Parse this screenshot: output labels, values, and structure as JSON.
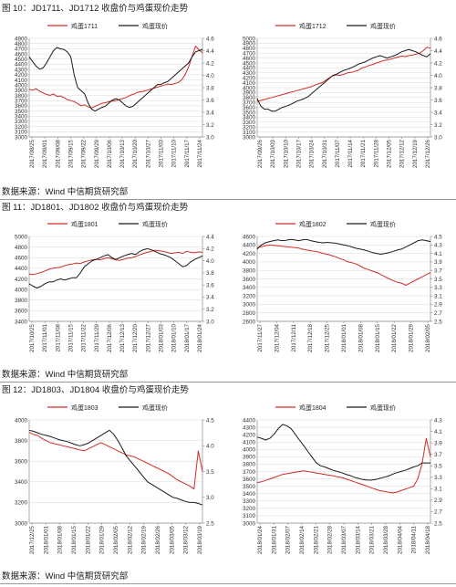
{
  "figures": [
    {
      "title": "图 10：JD1711、JD1712 收盘价与鸡蛋现价走势",
      "source": "数据来源：Wind  中信期货研究部"
    },
    {
      "title": "图 11：JD1801、JD1802 收盘价与鸡蛋现价走势",
      "source": "数据来源：Wind  中信期货研究部"
    },
    {
      "title": "图 12：JD1803、JD1804 收盘价与鸡蛋现价走势",
      "source": "数据来源：Wind  中信期货研究部"
    }
  ],
  "colors": {
    "futures": "#d42a2a",
    "spot": "#1a1a1a",
    "grid": "#d9d9d9",
    "axis": "#888888"
  },
  "chart_data": [
    {
      "type": "line",
      "legend": [
        "鸡蛋1711",
        "鸡蛋现价"
      ],
      "legend_position": "top",
      "ylim": [
        3000,
        4900
      ],
      "yticks": [
        3000,
        3100,
        3200,
        3300,
        3400,
        3500,
        3600,
        3700,
        3800,
        3900,
        4000,
        4100,
        4200,
        4300,
        4400,
        4500,
        4600,
        4700,
        4800,
        4900
      ],
      "y2lim": [
        3.0,
        4.6
      ],
      "y2ticks": [
        3.0,
        3.2,
        3.4,
        3.6,
        3.8,
        4.0,
        4.2,
        4.4,
        4.6
      ],
      "ytick_labels": [
        "3000",
        "3100",
        "3200",
        "3300",
        "3400",
        "3500",
        "3600",
        "3700",
        "3800",
        "3900",
        "4000",
        "4100",
        "4200",
        "4300",
        "4400",
        "4500",
        "4600",
        "4700",
        "4800",
        "4900"
      ],
      "y2tick_labels": [
        "3.0",
        "3.2",
        "3.4",
        "3.6",
        "3.8",
        "4.0",
        "4.2",
        "4.4",
        "4.6"
      ],
      "xtick_labels": [
        "2017/08/25",
        "2017/09/01",
        "2017/09/08",
        "2017/09/15",
        "2017/09/22",
        "2017/09/29",
        "2017/10/06",
        "2017/10/13",
        "2017/10/20",
        "2017/10/27",
        "2017/11/03",
        "2017/11/10",
        "2017/11/17",
        "2017/11/24"
      ],
      "grid": true,
      "series": [
        {
          "name": "鸡蛋1711",
          "axis": "left",
          "values": [
            3920,
            3900,
            3930,
            3880,
            3850,
            3820,
            3800,
            3830,
            3780,
            3790,
            3760,
            3720,
            3700,
            3680,
            3640,
            3600,
            3620,
            3580,
            3560,
            3590,
            3620,
            3650,
            3660,
            3680,
            3690,
            3700,
            3720,
            3740,
            3760,
            3800,
            3820,
            3850,
            3870,
            3880,
            3900,
            3920,
            3940,
            3960,
            3980,
            4000,
            4020,
            4010,
            4030,
            4050,
            4100,
            4200,
            4350,
            4550,
            4750,
            4680,
            4620
          ]
        },
        {
          "name": "鸡蛋现价",
          "axis": "right",
          "values": [
            4.3,
            4.22,
            4.15,
            4.1,
            4.12,
            4.2,
            4.3,
            4.4,
            4.45,
            4.43,
            4.42,
            4.38,
            4.3,
            4.0,
            3.8,
            3.75,
            3.7,
            3.55,
            3.45,
            3.42,
            3.45,
            3.48,
            3.5,
            3.55,
            3.6,
            3.62,
            3.6,
            3.55,
            3.5,
            3.48,
            3.5,
            3.55,
            3.6,
            3.65,
            3.7,
            3.75,
            3.8,
            3.85,
            3.85,
            3.88,
            3.9,
            3.95,
            4.0,
            4.05,
            4.1,
            4.15,
            4.2,
            4.3,
            4.38,
            4.4,
            4.42
          ]
        }
      ]
    },
    {
      "type": "line",
      "legend": [
        "鸡蛋1712",
        "鸡蛋现价"
      ],
      "legend_position": "top",
      "ylim": [
        3000,
        5000
      ],
      "yticks": [
        3000,
        3100,
        3200,
        3300,
        3400,
        3500,
        3600,
        3700,
        3800,
        3900,
        4000,
        4100,
        4200,
        4300,
        4400,
        4500,
        4600,
        4700,
        4800,
        4900,
        5000
      ],
      "y2lim": [
        3.0,
        4.6
      ],
      "y2ticks": [
        3.0,
        3.2,
        3.4,
        3.6,
        3.8,
        4.0,
        4.2,
        4.4,
        4.6
      ],
      "ytick_labels": [
        "3000",
        "3100",
        "3200",
        "3300",
        "3400",
        "3500",
        "3600",
        "3700",
        "3800",
        "3900",
        "4000",
        "4100",
        "4200",
        "4300",
        "4400",
        "4500",
        "4600",
        "4700",
        "4800",
        "4900",
        "5000"
      ],
      "y2tick_labels": [
        "3.0",
        "3.2",
        "3.4",
        "3.6",
        "3.8",
        "4.0",
        "4.2",
        "4.4",
        "4.6"
      ],
      "xtick_labels": [
        "2017/09/26",
        "2017/10/03",
        "2017/10/10",
        "2017/10/17",
        "2017/10/24",
        "2017/10/31",
        "2017/11/07",
        "2017/11/14",
        "2017/11/21",
        "2017/11/28",
        "2017/12/05",
        "2017/12/12",
        "2017/12/19",
        "2017/12/26"
      ],
      "grid": true,
      "series": [
        {
          "name": "鸡蛋1712",
          "axis": "left",
          "values": [
            3720,
            3740,
            3760,
            3780,
            3800,
            3820,
            3840,
            3860,
            3880,
            3900,
            3920,
            3940,
            3960,
            3980,
            4000,
            4020,
            4050,
            4080,
            4100,
            4150,
            4200,
            4240,
            4260,
            4250,
            4270,
            4300,
            4310,
            4330,
            4350,
            4400,
            4420,
            4450,
            4470,
            4500,
            4520,
            4550,
            4560,
            4580,
            4600,
            4620,
            4640,
            4630,
            4650,
            4660,
            4680,
            4700,
            4750,
            4820,
            4800
          ]
        },
        {
          "name": "鸡蛋现价",
          "axis": "right",
          "values": [
            3.62,
            3.5,
            3.45,
            3.45,
            3.42,
            3.42,
            3.45,
            3.48,
            3.5,
            3.52,
            3.55,
            3.58,
            3.6,
            3.62,
            3.65,
            3.7,
            3.75,
            3.8,
            3.85,
            3.9,
            3.95,
            4.0,
            4.02,
            4.05,
            4.08,
            4.1,
            4.12,
            4.15,
            4.18,
            4.2,
            4.22,
            4.25,
            4.28,
            4.3,
            4.32,
            4.3,
            4.28,
            4.3,
            4.32,
            4.35,
            4.38,
            4.4,
            4.42,
            4.4,
            4.38,
            4.35,
            4.32,
            4.3,
            4.35
          ]
        }
      ]
    },
    {
      "type": "line",
      "legend": [
        "鸡蛋1801",
        "鸡蛋现价"
      ],
      "legend_position": "top",
      "ylim": [
        3400,
        5000
      ],
      "yticks": [
        3400,
        3600,
        3800,
        4000,
        4200,
        4400,
        4600,
        4800,
        5000
      ],
      "y2lim": [
        3.0,
        4.4
      ],
      "y2ticks": [
        3.0,
        3.2,
        3.4,
        3.6,
        3.8,
        4.0,
        4.2,
        4.4
      ],
      "ytick_labels": [
        "3400",
        "3600",
        "3800",
        "4000",
        "4200",
        "4400",
        "4600",
        "4800",
        "5000"
      ],
      "y2tick_labels": [
        "3.0",
        "3.2",
        "3.4",
        "3.6",
        "3.8",
        "4.0",
        "4.2",
        "4.4"
      ],
      "xtick_labels": [
        "2017/10/25",
        "2017/11/01",
        "2017/11/08",
        "2017/11/15",
        "2017/11/22",
        "2017/11/29",
        "2017/12/06",
        "2017/12/13",
        "2017/12/20",
        "2017/12/27",
        "2018/01/03",
        "2018/01/10",
        "2018/01/17",
        "2018/01/24"
      ],
      "grid": true,
      "series": [
        {
          "name": "鸡蛋1801",
          "axis": "left",
          "values": [
            4290,
            4280,
            4300,
            4320,
            4350,
            4380,
            4400,
            4410,
            4420,
            4450,
            4470,
            4480,
            4500,
            4490,
            4520,
            4540,
            4560,
            4570,
            4560,
            4580,
            4600,
            4580,
            4560,
            4550,
            4570,
            4590,
            4600,
            4620,
            4650,
            4680,
            4700,
            4720,
            4740,
            4730,
            4720,
            4700,
            4680,
            4690,
            4700,
            4680,
            4720,
            4700,
            4690,
            4710,
            4700
          ]
        },
        {
          "name": "鸡蛋现价",
          "axis": "right",
          "values": [
            3.62,
            3.58,
            3.55,
            3.58,
            3.62,
            3.65,
            3.65,
            3.68,
            3.7,
            3.68,
            3.7,
            3.72,
            3.72,
            3.8,
            3.9,
            3.95,
            4.0,
            4.02,
            4.05,
            4.08,
            4.1,
            4.05,
            4.02,
            4.05,
            4.08,
            4.1,
            4.12,
            4.1,
            4.15,
            4.18,
            4.2,
            4.18,
            4.15,
            4.12,
            4.1,
            4.08,
            4.05,
            4.0,
            3.95,
            3.9,
            3.92,
            3.98,
            4.02,
            4.05,
            4.08
          ]
        }
      ]
    },
    {
      "type": "line",
      "legend": [
        "鸡蛋1802",
        "鸡蛋现价"
      ],
      "legend_position": "top",
      "ylim": [
        2600,
        4600
      ],
      "yticks": [
        2600,
        2800,
        3000,
        3200,
        3400,
        3600,
        3800,
        4000,
        4200,
        4400,
        4600
      ],
      "y2lim": [
        2.5,
        4.5
      ],
      "y2ticks": [
        2.5,
        2.7,
        2.9,
        3.1,
        3.3,
        3.5,
        3.7,
        3.9,
        4.1,
        4.3,
        4.5
      ],
      "ytick_labels": [
        "2600",
        "2800",
        "3000",
        "3200",
        "3400",
        "3600",
        "3800",
        "4000",
        "4200",
        "4400",
        "4600"
      ],
      "y2tick_labels": [
        "2.5",
        "2.7",
        "2.9",
        "3.1",
        "3.3",
        "3.5",
        "3.7",
        "3.9",
        "4.1",
        "4.3",
        "4.5"
      ],
      "xtick_labels": [
        "2017/11/27",
        "2017/12/04",
        "2017/12/11",
        "2017/12/18",
        "2017/12/25",
        "2018/01/01",
        "2018/01/08",
        "2018/01/15",
        "2018/01/22",
        "2018/01/29",
        "2018/02/05"
      ],
      "grid": true,
      "series": [
        {
          "name": "鸡蛋1802",
          "axis": "left",
          "values": [
            4340,
            4360,
            4380,
            4400,
            4390,
            4380,
            4370,
            4360,
            4350,
            4340,
            4330,
            4300,
            4280,
            4260,
            4250,
            4230,
            4200,
            4180,
            4150,
            4120,
            4080,
            4050,
            4000,
            3980,
            3950,
            3900,
            3850,
            3820,
            3780,
            3750,
            3700,
            3650,
            3600,
            3560,
            3520,
            3500,
            3450,
            3500,
            3550,
            3600,
            3650,
            3700,
            3750
          ]
        },
        {
          "name": "鸡蛋现价",
          "axis": "right",
          "values": [
            4.2,
            4.3,
            4.35,
            4.38,
            4.4,
            4.42,
            4.4,
            4.41,
            4.43,
            4.42,
            4.4,
            4.42,
            4.43,
            4.4,
            4.38,
            4.36,
            4.35,
            4.36,
            4.35,
            4.34,
            4.32,
            4.3,
            4.28,
            4.25,
            4.22,
            4.2,
            4.18,
            4.15,
            4.12,
            4.1,
            4.08,
            4.1,
            4.12,
            4.15,
            4.18,
            4.2,
            4.25,
            4.3,
            4.35,
            4.4,
            4.42,
            4.4,
            4.38
          ]
        }
      ]
    },
    {
      "type": "line",
      "legend": [
        "鸡蛋1803",
        "鸡蛋现价"
      ],
      "legend_position": "top",
      "ylim": [
        3000,
        4000
      ],
      "yticks": [
        3000,
        3200,
        3400,
        3600,
        3800,
        4000
      ],
      "y2lim": [
        2.5,
        4.5
      ],
      "y2ticks": [
        2.5,
        3.0,
        3.5,
        4.0,
        4.5
      ],
      "ytick_labels": [
        "3000",
        "3200",
        "3400",
        "3600",
        "3800",
        "4000"
      ],
      "y2tick_labels": [
        "2.5",
        "3.0",
        "3.5",
        "4.0",
        "4.5"
      ],
      "xtick_labels": [
        "2017/12/25",
        "2018/01/01",
        "2018/01/08",
        "2018/01/15",
        "2018/01/22",
        "2018/01/29",
        "2018/02/05",
        "2018/02/12",
        "2018/02/19",
        "2018/02/26",
        "2018/03/05",
        "2018/03/12",
        "2018/03/19"
      ],
      "grid": true,
      "series": [
        {
          "name": "鸡蛋1803",
          "axis": "left",
          "values": [
            3880,
            3860,
            3850,
            3820,
            3800,
            3780,
            3770,
            3760,
            3750,
            3740,
            3730,
            3720,
            3710,
            3700,
            3720,
            3740,
            3760,
            3780,
            3760,
            3740,
            3720,
            3700,
            3680,
            3660,
            3650,
            3640,
            3620,
            3600,
            3580,
            3560,
            3540,
            3520,
            3500,
            3480,
            3450,
            3420,
            3400,
            3380,
            3360,
            3330,
            3700,
            3500
          ]
        },
        {
          "name": "鸡蛋现价",
          "axis": "right",
          "values": [
            4.3,
            4.28,
            4.25,
            4.22,
            4.2,
            4.18,
            4.15,
            4.12,
            4.1,
            4.08,
            4.05,
            4.02,
            4.0,
            4.02,
            4.05,
            4.1,
            4.15,
            4.2,
            4.25,
            4.3,
            4.22,
            4.1,
            3.95,
            3.8,
            3.7,
            3.6,
            3.5,
            3.4,
            3.3,
            3.25,
            3.2,
            3.15,
            3.1,
            3.05,
            3.0,
            2.98,
            2.95,
            2.92,
            2.9,
            2.9,
            2.88,
            2.85
          ]
        }
      ]
    },
    {
      "type": "line",
      "legend": [
        "鸡蛋1804",
        "鸡蛋现价"
      ],
      "legend_position": "top",
      "ylim": [
        3000,
        4400
      ],
      "yticks": [
        3000,
        3100,
        3200,
        3300,
        3400,
        3500,
        3600,
        3700,
        3800,
        3900,
        4000,
        4100,
        4200,
        4300,
        4400
      ],
      "y2lim": [
        2.5,
        4.3
      ],
      "y2ticks": [
        2.5,
        2.7,
        2.9,
        3.1,
        3.3,
        3.5,
        3.7,
        3.9,
        4.1,
        4.3
      ],
      "ytick_labels": [
        "3000",
        "3100",
        "3200",
        "3300",
        "3400",
        "3500",
        "3600",
        "3700",
        "3800",
        "3900",
        "4000",
        "4100",
        "4200",
        "4300",
        "4400"
      ],
      "y2tick_labels": [
        "2.5",
        "2.7",
        "2.9",
        "3.1",
        "3.3",
        "3.5",
        "3.7",
        "3.9",
        "4.1",
        "4.3"
      ],
      "xtick_labels": [
        "2018/01/24",
        "2018/01/31",
        "2018/02/07",
        "2018/02/14",
        "2018/02/21",
        "2018/02/28",
        "2018/03/07",
        "2018/03/14",
        "2018/03/21",
        "2018/03/28",
        "2018/04/04",
        "2018/04/11",
        "2018/04/18"
      ],
      "grid": true,
      "series": [
        {
          "name": "鸡蛋1804",
          "axis": "left",
          "values": [
            3550,
            3560,
            3580,
            3600,
            3620,
            3640,
            3660,
            3670,
            3680,
            3690,
            3700,
            3710,
            3700,
            3690,
            3680,
            3670,
            3660,
            3650,
            3640,
            3630,
            3620,
            3600,
            3580,
            3560,
            3540,
            3520,
            3500,
            3480,
            3460,
            3440,
            3430,
            3420,
            3410,
            3420,
            3440,
            3460,
            3480,
            3500,
            3600,
            3800,
            4150,
            3900
          ]
        },
        {
          "name": "鸡蛋现价",
          "axis": "right",
          "values": [
            4.0,
            3.98,
            3.95,
            3.98,
            4.05,
            4.15,
            4.22,
            4.2,
            4.15,
            4.05,
            3.95,
            3.85,
            3.75,
            3.65,
            3.55,
            3.5,
            3.48,
            3.45,
            3.42,
            3.4,
            3.38,
            3.35,
            3.33,
            3.3,
            3.28,
            3.26,
            3.25,
            3.25,
            3.26,
            3.28,
            3.3,
            3.32,
            3.35,
            3.38,
            3.4,
            3.42,
            3.45,
            3.48,
            3.5,
            3.55,
            3.55,
            3.55
          ]
        }
      ]
    }
  ]
}
